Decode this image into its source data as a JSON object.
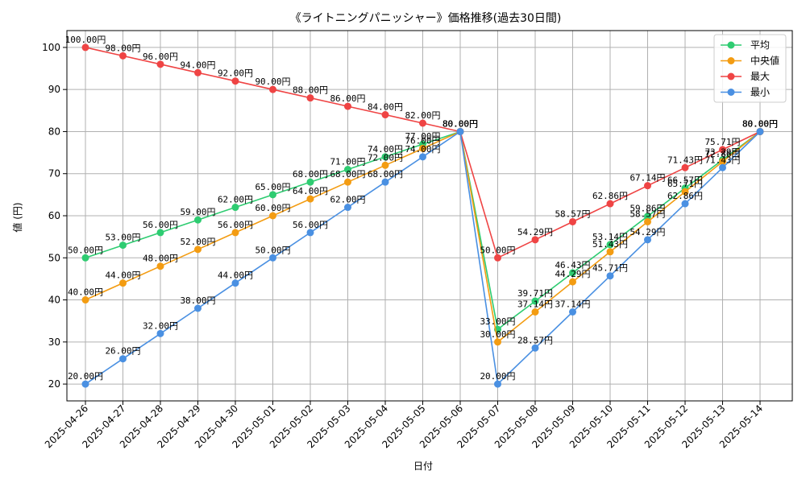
{
  "chart_data": {
    "type": "line",
    "title": "《ライトニングパニッシャー》価格推移(過去30日間)",
    "xlabel": "日付",
    "ylabel": "値 (円)",
    "ylim": [
      16,
      104
    ],
    "yticks": [
      20,
      30,
      40,
      50,
      60,
      70,
      80,
      90,
      100
    ],
    "grid": true,
    "legend_position": "top-right",
    "value_suffix": "円",
    "categories": [
      "2025-04-26",
      "2025-04-27",
      "2025-04-28",
      "2025-04-29",
      "2025-04-30",
      "2025-05-01",
      "2025-05-02",
      "2025-05-03",
      "2025-05-04",
      "2025-05-05",
      "2025-05-06",
      "2025-05-07",
      "2025-05-08",
      "2025-05-09",
      "2025-05-10",
      "2025-05-11",
      "2025-05-12",
      "2025-05-13",
      "2025-05-14"
    ],
    "series": [
      {
        "name": "平均",
        "color": "#2ecc71",
        "values": [
          50,
          53,
          56,
          59,
          62,
          65,
          68,
          71,
          74,
          77,
          80,
          33,
          39.71,
          46.43,
          53.14,
          59.86,
          66.57,
          73.29,
          80
        ]
      },
      {
        "name": "中央値",
        "color": "#f39c12",
        "values": [
          40,
          44,
          48,
          52,
          56,
          60,
          64,
          68,
          72,
          76,
          80,
          30,
          37.14,
          44.29,
          51.43,
          58.57,
          65.71,
          72.86,
          80
        ]
      },
      {
        "name": "最大",
        "color": "#ef4444",
        "values": [
          100,
          98,
          96,
          94,
          92,
          90,
          88,
          86,
          84,
          82,
          80,
          50,
          54.29,
          58.57,
          62.86,
          67.14,
          71.43,
          75.71,
          80
        ]
      },
      {
        "name": "最小",
        "color": "#4a90e2",
        "values": [
          20,
          26,
          32,
          38,
          44,
          50,
          56,
          62,
          68,
          74,
          80,
          20,
          28.57,
          37.14,
          45.71,
          54.29,
          62.86,
          71.43,
          80
        ]
      }
    ]
  }
}
